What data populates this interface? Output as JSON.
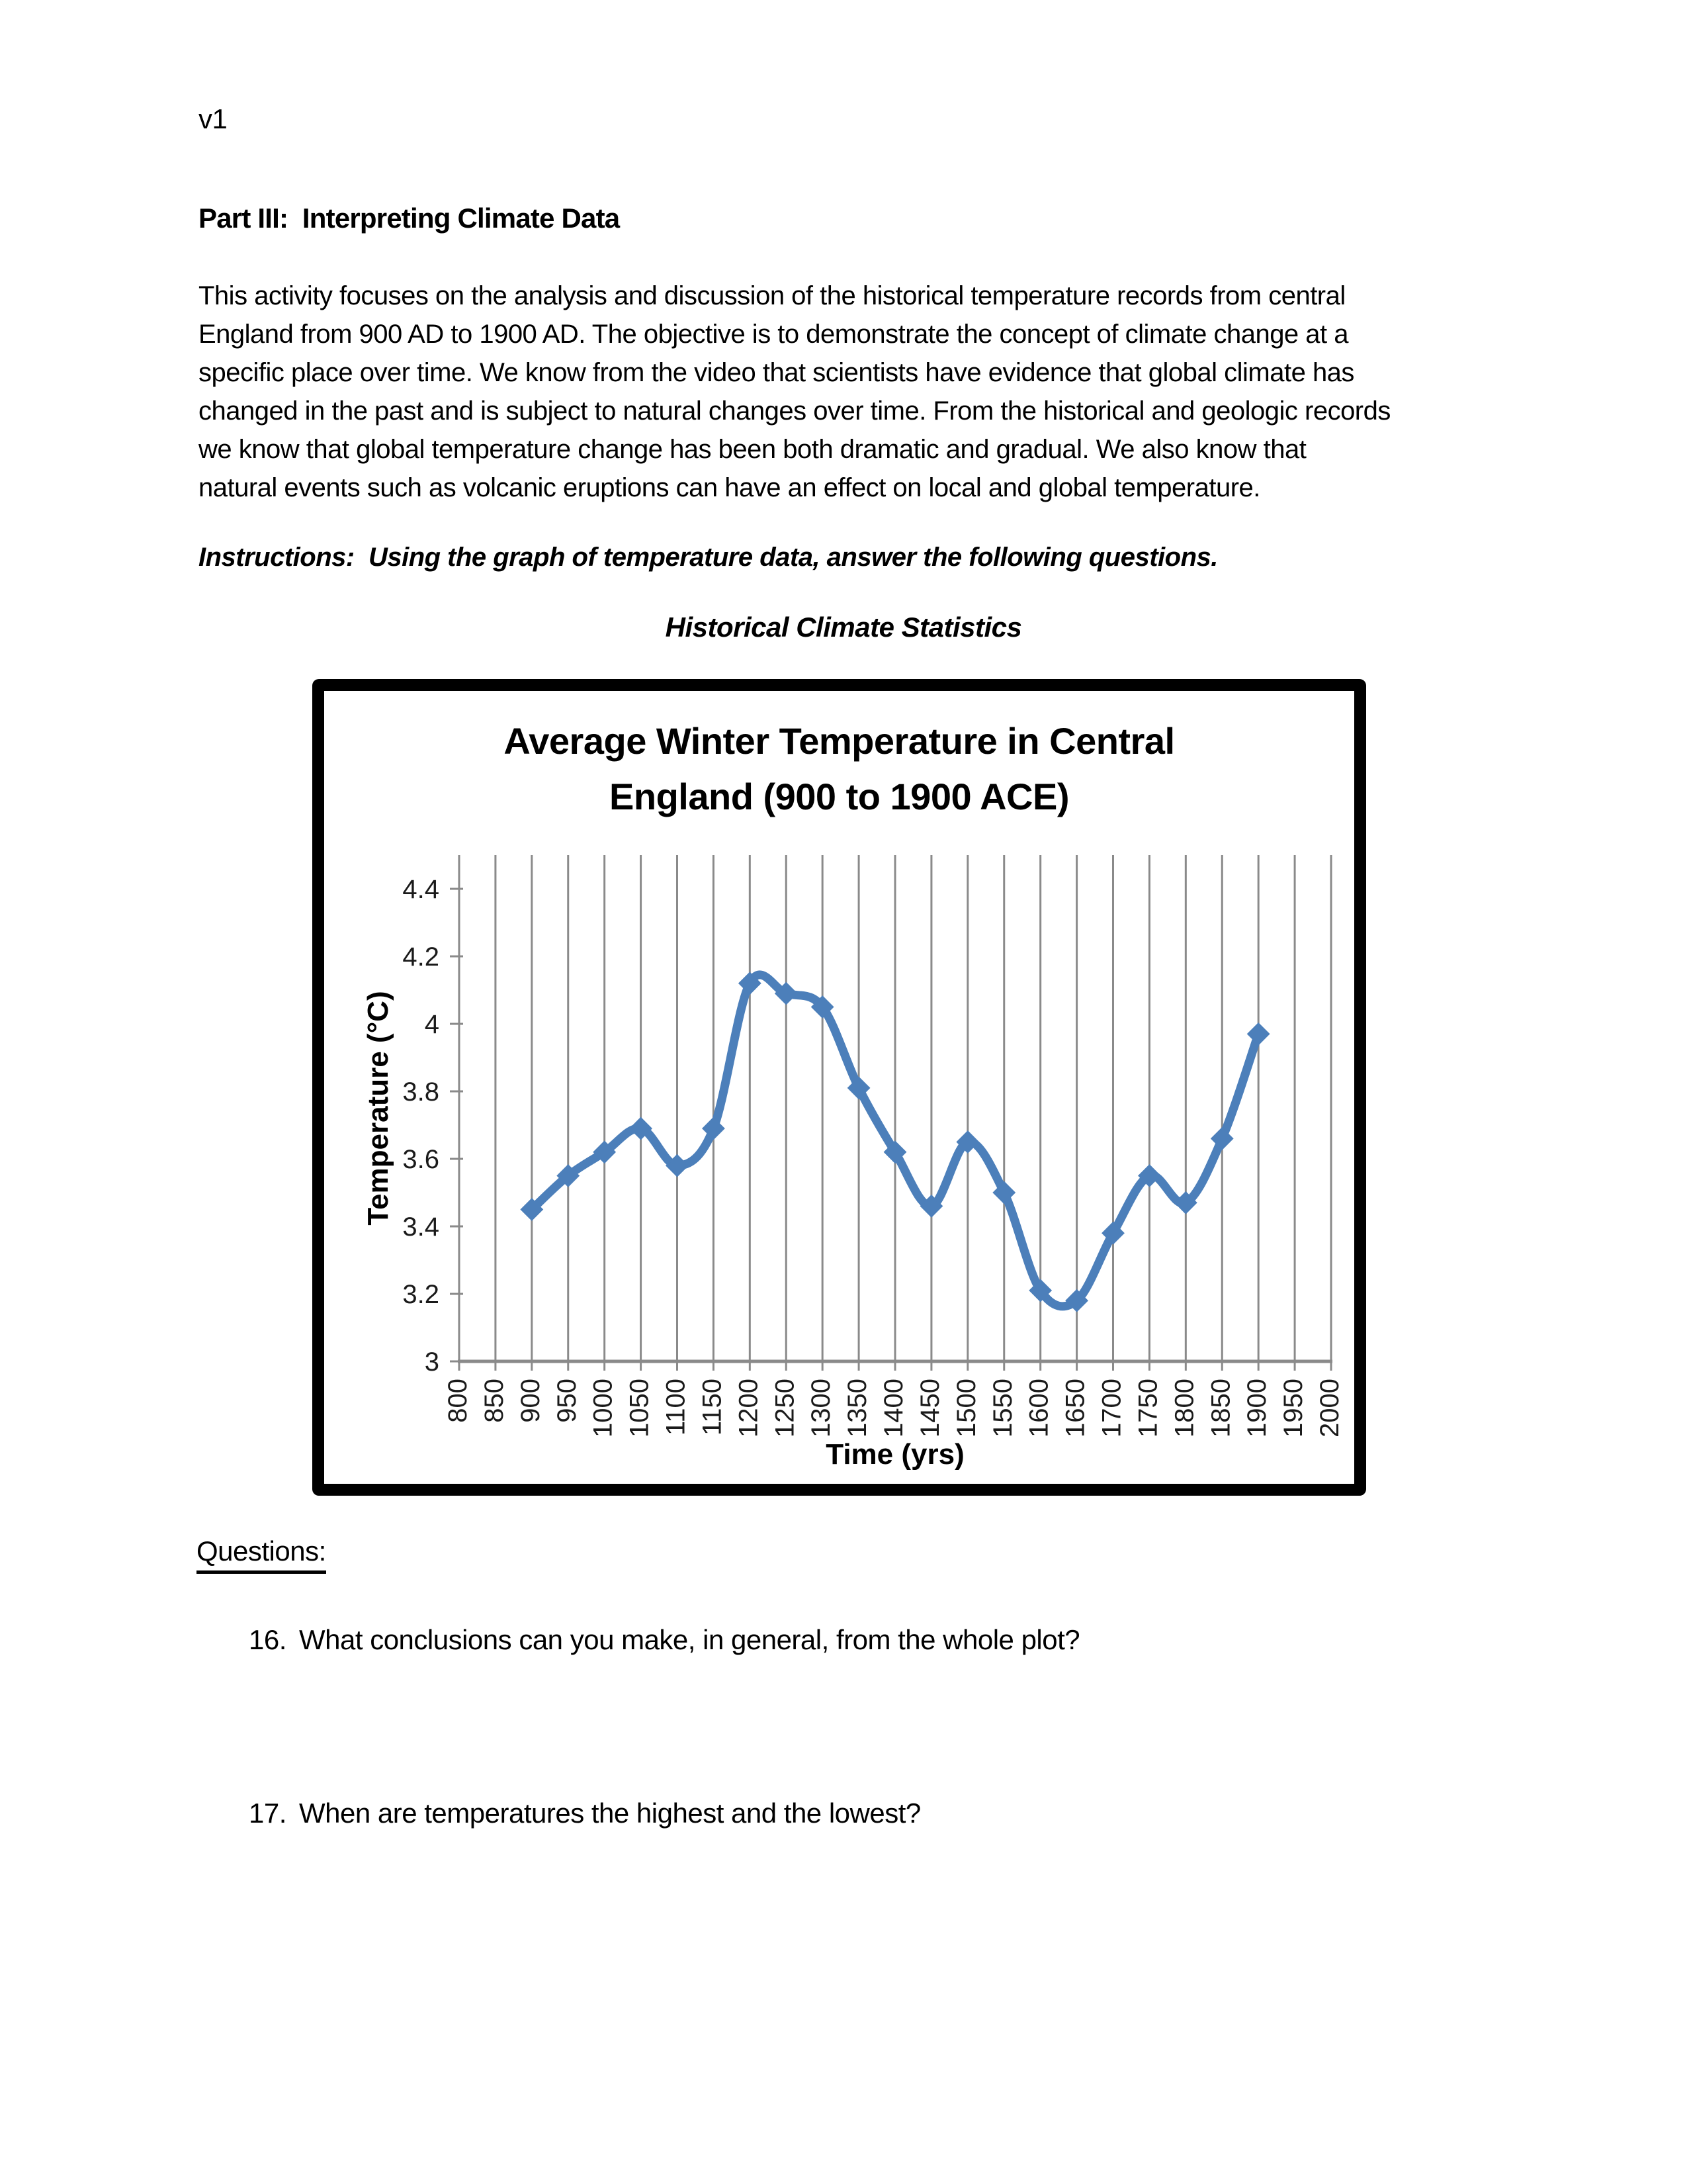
{
  "document": {
    "version_label": "v1",
    "section_heading": "Part III:  Interpreting Climate Data",
    "intro_lines": [
      "This activity focuses on the analysis and discussion of the historical temperature records from central",
      "England from 900 AD to 1900 AD. The objective is to demonstrate the concept of climate change at a",
      "specific place over time. We know from the video that scientists have evidence that global climate has",
      "changed in the past and is subject to natural changes over time. From the historical and geologic records",
      "we know that global temperature change has been both dramatic and gradual. We also know that",
      "natural events such as volcanic eruptions can have an effect on local and global temperature."
    ],
    "instructions": "Instructions:  Using the graph of temperature data, answer the following questions.",
    "figure_heading": "Historical Climate Statistics",
    "questions_label": "Questions:",
    "questions": [
      {
        "number": "16.",
        "text": "What conclusions can you make, in general, from the whole plot?"
      },
      {
        "number": "17.",
        "text": "When are temperatures the highest and the lowest?"
      }
    ]
  },
  "chart_data": {
    "type": "line",
    "title_line1": "Average Winter Temperature in Central",
    "title_line2": "England (900 to 1900 ACE)",
    "xlabel": "Time (yrs)",
    "ylabel": "Temperature (°C)",
    "xlim": [
      800,
      2000
    ],
    "ylim": [
      3.0,
      4.5
    ],
    "x_ticks": [
      800,
      850,
      900,
      950,
      1000,
      1050,
      1100,
      1150,
      1200,
      1250,
      1300,
      1350,
      1400,
      1450,
      1500,
      1550,
      1600,
      1650,
      1700,
      1750,
      1800,
      1850,
      1900,
      1950,
      2000
    ],
    "y_ticks": [
      3,
      3.2,
      3.4,
      3.6,
      3.8,
      4,
      4.2,
      4.4
    ],
    "y_tick_labels": [
      "3",
      "3.2",
      "3.4",
      "3.6",
      "3.8",
      "4",
      "4.2",
      "4.4"
    ],
    "x": [
      900,
      950,
      1000,
      1050,
      1100,
      1150,
      1200,
      1250,
      1300,
      1350,
      1400,
      1450,
      1500,
      1550,
      1600,
      1650,
      1700,
      1750,
      1800,
      1850,
      1900
    ],
    "values": [
      3.45,
      3.55,
      3.62,
      3.69,
      3.58,
      3.69,
      4.12,
      4.09,
      4.05,
      3.81,
      3.62,
      3.46,
      3.65,
      3.5,
      3.21,
      3.18,
      3.38,
      3.55,
      3.47,
      3.66,
      3.97
    ],
    "smoothed_line": true,
    "marker": "diamond",
    "legend": "none",
    "grid": "vertical-only",
    "series_color": "#4C7FBA",
    "grid_color": "#8a8a8a",
    "axis_color": "#8a8a8a",
    "tick_label_color": "#1a1a1a"
  }
}
